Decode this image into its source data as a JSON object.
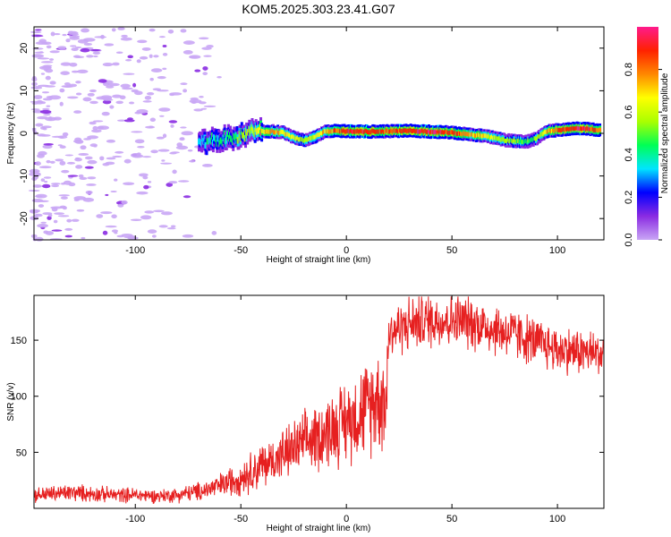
{
  "figure": {
    "title": "KOM5.2025.303.23.41.G07"
  },
  "colors": {
    "snr_line": "#e62020",
    "ridge_low": "#8a2be2",
    "noise": "#c9a6f5"
  },
  "chart_data": [
    {
      "type": "heatmap",
      "name": "spectrogram",
      "xlabel": "Height of straight line (km)",
      "ylabel": "Frequency (Hz)",
      "xlim": [
        -148,
        122
      ],
      "ylim": [
        -25,
        25
      ],
      "xticks": [
        -100,
        -50,
        0,
        50,
        100
      ],
      "yticks": [
        -20,
        -10,
        0,
        10,
        20
      ],
      "grid": false,
      "colorbar": {
        "label": "Normalized spectral amplitude",
        "range": [
          0,
          1
        ],
        "ticks": [
          0.0,
          0.2,
          0.4,
          0.6,
          0.8
        ],
        "colormap": [
          "#c9a6f5",
          "#8a2be2",
          "#0000ff",
          "#00e5ff",
          "#00ff55",
          "#aaff00",
          "#ffff00",
          "#ff8800",
          "#ff2200",
          "#ff1a8c"
        ]
      },
      "ridge": {
        "description": "dominant frequency ridge",
        "x": [
          -70,
          -60,
          -50,
          -45,
          -40,
          -35,
          -30,
          -25,
          -20,
          -15,
          -10,
          -5,
          0,
          10,
          20,
          30,
          40,
          50,
          60,
          70,
          75,
          80,
          85,
          90,
          95,
          100,
          110,
          115,
          120
        ],
        "y": [
          -2.5,
          -1.5,
          -0.5,
          0.3,
          0.4,
          0.5,
          0.2,
          -1.0,
          -1.6,
          -0.8,
          0.4,
          0.6,
          0.5,
          0.4,
          0.5,
          0.6,
          0.4,
          0.2,
          -0.3,
          -1.0,
          -1.6,
          -1.8,
          -2.0,
          -1.2,
          0.5,
          0.8,
          1.2,
          1.0,
          0.8
        ],
        "amplitude": [
          0.3,
          0.4,
          0.5,
          0.6,
          0.7,
          0.75,
          0.7,
          0.6,
          0.55,
          0.6,
          0.7,
          0.8,
          0.9,
          0.9,
          0.85,
          0.9,
          0.95,
          0.85,
          0.75,
          0.6,
          0.55,
          0.5,
          0.45,
          0.5,
          0.7,
          0.85,
          0.95,
          0.9,
          0.8
        ]
      },
      "noise_region_x": [
        -148,
        -60
      ]
    },
    {
      "type": "line",
      "name": "snr",
      "xlabel": "Height of straight line (km)",
      "ylabel": "SNR (v/v)",
      "xlim": [
        -148,
        122
      ],
      "ylim": [
        0,
        190
      ],
      "xticks": [
        -100,
        -50,
        0,
        50,
        100
      ],
      "yticks": [
        50,
        100,
        150
      ],
      "grid": false,
      "series": [
        {
          "name": "SNR",
          "x": [
            -148,
            -140,
            -130,
            -120,
            -110,
            -100,
            -90,
            -80,
            -70,
            -60,
            -50,
            -40,
            -30,
            -20,
            -10,
            0,
            10,
            15,
            19,
            20,
            30,
            40,
            50,
            60,
            70,
            80,
            90,
            100,
            110,
            120,
            122
          ],
          "y": [
            12,
            13,
            14,
            13,
            12,
            12,
            11,
            12,
            15,
            20,
            28,
            38,
            48,
            58,
            68,
            78,
            90,
            100,
            95,
            157,
            165,
            168,
            168,
            166,
            160,
            155,
            148,
            142,
            140,
            138,
            138
          ]
        }
      ]
    }
  ]
}
